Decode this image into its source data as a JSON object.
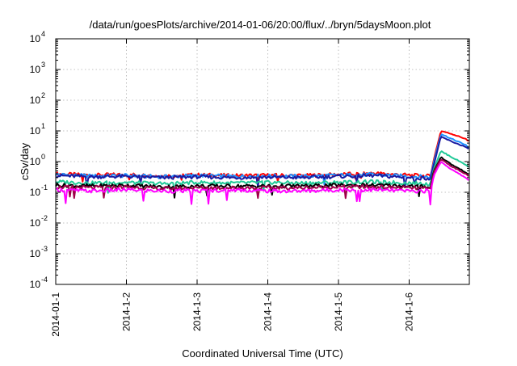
{
  "chart_data": {
    "type": "line",
    "title": "/data/run/goesPlots/archive/2014-01-06/20:00/flux/../bryn/5daysMoon.plot",
    "xlabel": "Coordinated Universal Time (UTC)",
    "ylabel": "cSv/day",
    "yscale": "log",
    "ylim": [
      0.0001,
      10000
    ],
    "xlim": [
      "2014-01-01",
      "2014-01-06 20:00"
    ],
    "grid": true,
    "legend": "none",
    "x_ticks": [
      "2014-01-1",
      "2014-1-2",
      "2014-1-3",
      "2014-1-4",
      "2014-1-5",
      "2014-1-6"
    ],
    "y_ticks": [
      {
        "base": "10",
        "exp": "-4"
      },
      {
        "base": "10",
        "exp": "-3"
      },
      {
        "base": "10",
        "exp": "-2"
      },
      {
        "base": "10",
        "exp": "-1"
      },
      {
        "base": "10",
        "exp": "0"
      },
      {
        "base": "10",
        "exp": "1"
      },
      {
        "base": "10",
        "exp": "2"
      },
      {
        "base": "10",
        "exp": "3"
      },
      {
        "base": "10",
        "exp": "4"
      }
    ],
    "x_days": [
      0,
      0.5,
      1.0,
      1.5,
      2.0,
      2.5,
      3.0,
      3.5,
      4.0,
      4.5,
      5.0,
      5.25,
      5.3,
      5.35,
      5.45,
      5.6,
      5.8,
      5.84
    ],
    "series": [
      {
        "color": "#ff0000",
        "values": [
          0.4,
          0.36,
          0.38,
          0.34,
          0.37,
          0.35,
          0.36,
          0.35,
          0.38,
          0.42,
          0.36,
          0.34,
          0.33,
          1.2,
          10.0,
          8.0,
          5.5,
          4.5
        ]
      },
      {
        "color": "#1e90ff",
        "values": [
          0.38,
          0.34,
          0.35,
          0.32,
          0.35,
          0.33,
          0.34,
          0.33,
          0.36,
          0.38,
          0.33,
          0.32,
          0.31,
          1.0,
          8.0,
          5.5,
          3.5,
          2.7
        ]
      },
      {
        "color": "#1a1aa0",
        "values": [
          0.35,
          0.32,
          0.33,
          0.3,
          0.32,
          0.3,
          0.31,
          0.3,
          0.33,
          0.35,
          0.3,
          0.29,
          0.28,
          0.8,
          6.5,
          4.5,
          3.0,
          2.5
        ]
      },
      {
        "color": "#20c997",
        "values": [
          0.22,
          0.2,
          0.21,
          0.19,
          0.21,
          0.2,
          0.21,
          0.2,
          0.21,
          0.22,
          0.2,
          0.19,
          0.18,
          0.6,
          2.2,
          1.4,
          0.8,
          0.65
        ]
      },
      {
        "color": "#000000",
        "values": [
          0.17,
          0.16,
          0.17,
          0.15,
          0.16,
          0.16,
          0.16,
          0.16,
          0.17,
          0.17,
          0.16,
          0.15,
          0.15,
          0.5,
          1.4,
          0.8,
          0.45,
          0.38
        ]
      },
      {
        "color": "#a0004a",
        "values": [
          0.15,
          0.14,
          0.15,
          0.13,
          0.14,
          0.14,
          0.14,
          0.14,
          0.15,
          0.15,
          0.14,
          0.13,
          0.13,
          0.45,
          1.2,
          0.7,
          0.4,
          0.33
        ]
      },
      {
        "color": "#ff00ff",
        "values": [
          0.12,
          0.11,
          0.12,
          0.11,
          0.11,
          0.12,
          0.11,
          0.11,
          0.12,
          0.12,
          0.11,
          0.11,
          0.1,
          0.35,
          1.0,
          0.55,
          0.3,
          0.25
        ]
      }
    ]
  }
}
